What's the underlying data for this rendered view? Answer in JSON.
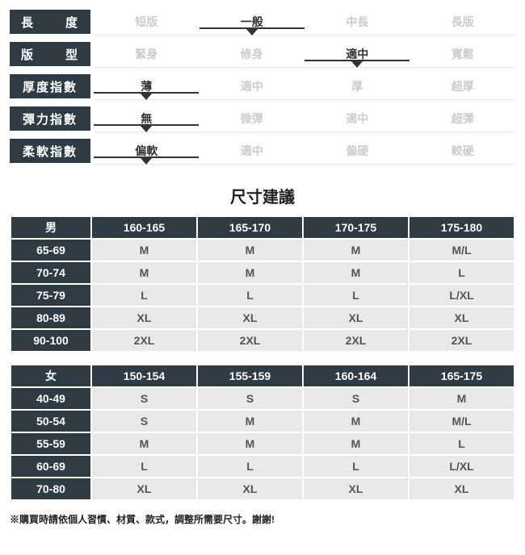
{
  "attributes": [
    {
      "label": "長度",
      "spread": true,
      "options": [
        "短版",
        "一般",
        "中長",
        "長版"
      ],
      "selected": 1
    },
    {
      "label": "版型",
      "spread": true,
      "options": [
        "緊身",
        "修身",
        "適中",
        "寬鬆"
      ],
      "selected": 2
    },
    {
      "label": "厚度指數",
      "spread": false,
      "options": [
        "薄",
        "適中",
        "厚",
        "超厚"
      ],
      "selected": 0
    },
    {
      "label": "彈力指數",
      "spread": false,
      "options": [
        "無",
        "微彈",
        "適中",
        "超彈"
      ],
      "selected": 0
    },
    {
      "label": "柔軟指數",
      "spread": false,
      "options": [
        "偏軟",
        "適中",
        "偏硬",
        "較硬"
      ],
      "selected": 0
    }
  ],
  "section_title": "尺寸建議",
  "tables": [
    {
      "corner": "男",
      "columns": [
        "160-165",
        "165-170",
        "170-175",
        "175-180"
      ],
      "rows": [
        {
          "head": "65-69",
          "cells": [
            "M",
            "M",
            "M",
            "M/L"
          ]
        },
        {
          "head": "70-74",
          "cells": [
            "M",
            "M",
            "M",
            "L"
          ]
        },
        {
          "head": "75-79",
          "cells": [
            "L",
            "L",
            "L",
            "L/XL"
          ]
        },
        {
          "head": "80-89",
          "cells": [
            "XL",
            "XL",
            "XL",
            "XL"
          ]
        },
        {
          "head": "90-100",
          "cells": [
            "2XL",
            "2XL",
            "2XL",
            "2XL"
          ]
        }
      ]
    },
    {
      "corner": "女",
      "columns": [
        "150-154",
        "155-159",
        "160-164",
        "165-175"
      ],
      "rows": [
        {
          "head": "40-49",
          "cells": [
            "S",
            "S",
            "S",
            "M"
          ]
        },
        {
          "head": "50-54",
          "cells": [
            "S",
            "M",
            "M",
            "M/L"
          ]
        },
        {
          "head": "55-59",
          "cells": [
            "M",
            "M",
            "M",
            "L"
          ]
        },
        {
          "head": "60-69",
          "cells": [
            "L",
            "L",
            "L",
            "L/XL"
          ]
        },
        {
          "head": "70-80",
          "cells": [
            "XL",
            "XL",
            "XL",
            "XL"
          ]
        }
      ]
    }
  ],
  "footnote": "※購買時請依個人習慣、材質、款式，調整所需要尺寸。謝謝!",
  "colors": {
    "dark": "#2f3b45",
    "cell_bg": "#e9e9e9",
    "option_inactive": "#cccccc",
    "option_active": "#333333",
    "marker": "#333333",
    "baseline": "#e5e5e5"
  }
}
